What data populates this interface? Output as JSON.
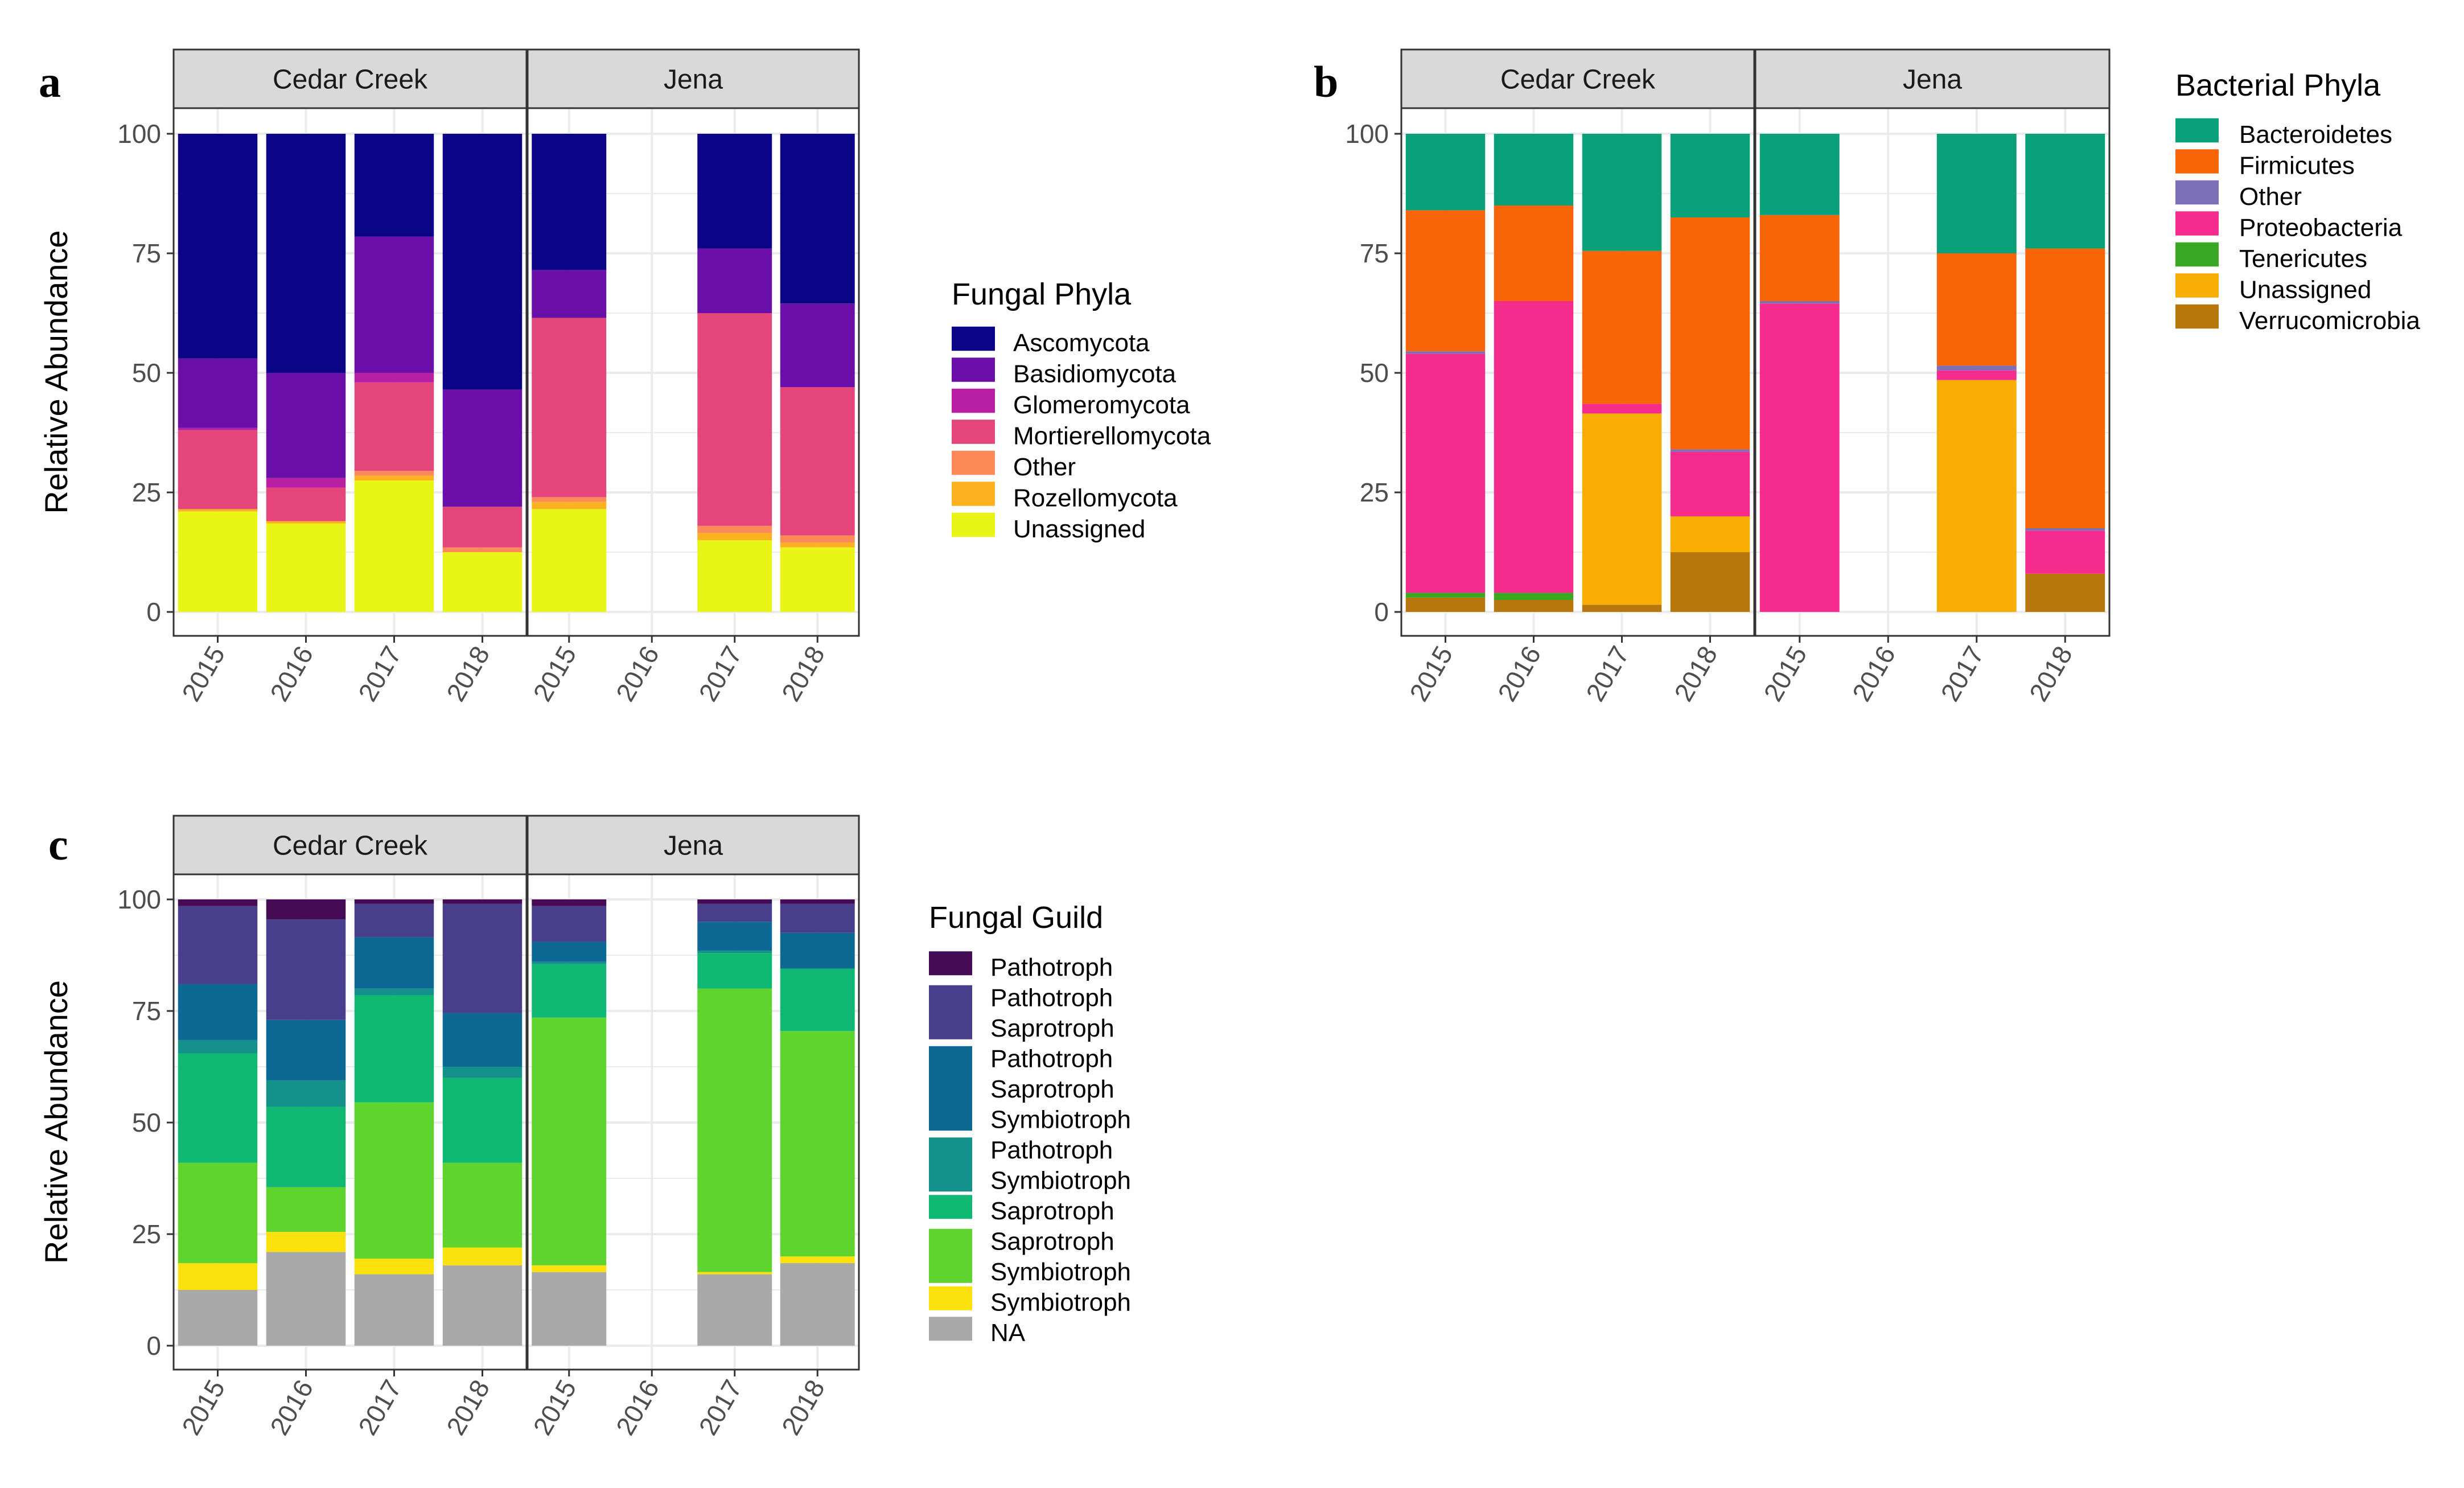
{
  "chart_data": [
    {
      "panel": "a",
      "type": "bar",
      "stacked": true,
      "ylabel": "Relative Abundance",
      "ylim": [
        0,
        100
      ],
      "yticks": [
        "0",
        "25",
        "50",
        "75",
        "100"
      ],
      "facets": [
        "Cedar Creek",
        "Jena"
      ],
      "categories": [
        "2015",
        "2016",
        "2017",
        "2018"
      ],
      "legend": {
        "title": "Fungal Phyla",
        "position": "right",
        "items": [
          "Ascomycota",
          "Basidiomycota",
          "Glomeromycota",
          "Mortierellomycota",
          "Other",
          "Rozellomycota",
          "Unassigned"
        ]
      },
      "series": [
        {
          "name": "Unassigned",
          "color": "#e8f516",
          "values": {
            "Cedar Creek": [
              21,
              18.5,
              27.5,
              12.5
            ],
            "Jena": [
              21.5,
              0,
              15,
              13.5
            ]
          }
        },
        {
          "name": "Rozellomycota",
          "color": "#fdb221",
          "values": {
            "Cedar Creek": [
              0.5,
              0.5,
              1,
              0
            ],
            "Jena": [
              1.5,
              0,
              1.5,
              1
            ]
          }
        },
        {
          "name": "Other",
          "color": "#fc8b59",
          "values": {
            "Cedar Creek": [
              0,
              0,
              1,
              1
            ],
            "Jena": [
              1,
              0,
              1.5,
              1.5
            ]
          }
        },
        {
          "name": "Mortierellomycota",
          "color": "#e4457a",
          "values": {
            "Cedar Creek": [
              16.5,
              7,
              18.5,
              8.5
            ],
            "Jena": [
              37.5,
              0,
              44.5,
              31
            ]
          }
        },
        {
          "name": "Glomeromycota",
          "color": "#b81ea1",
          "values": {
            "Cedar Creek": [
              0.5,
              2,
              2,
              0
            ],
            "Jena": [
              0,
              0,
              0,
              0
            ]
          }
        },
        {
          "name": "Basidiomycota",
          "color": "#6a0fa8",
          "values": {
            "Cedar Creek": [
              14.5,
              22,
              28.5,
              24.5
            ],
            "Jena": [
              10,
              0,
              13.5,
              17.5
            ]
          }
        },
        {
          "name": "Ascomycota",
          "color": "#0b0486",
          "values": {
            "Cedar Creek": [
              47,
              50,
              21.5,
              53.5
            ],
            "Jena": [
              28.5,
              0,
              24,
              35.5
            ]
          }
        }
      ]
    },
    {
      "panel": "b",
      "type": "bar",
      "stacked": true,
      "ylabel": "",
      "ylim": [
        0,
        100
      ],
      "yticks": [
        "0",
        "25",
        "50",
        "75",
        "100"
      ],
      "facets": [
        "Cedar Creek",
        "Jena"
      ],
      "categories": [
        "2015",
        "2016",
        "2017",
        "2018"
      ],
      "legend": {
        "title": "Bacterial Phyla",
        "position": "top-right",
        "items": [
          "Bacteroidetes",
          "Firmicutes",
          "Other",
          "Proteobacteria",
          "Tenericutes",
          "Unassigned",
          "Verrucomicrobia"
        ]
      },
      "series": [
        {
          "name": "Verrucomicrobia",
          "color": "#b8770d",
          "values": {
            "Cedar Creek": [
              3,
              2.5,
              1.5,
              12.5
            ],
            "Jena": [
              0,
              0,
              0,
              8
            ]
          }
        },
        {
          "name": "Unassigned",
          "color": "#f8ad05",
          "values": {
            "Cedar Creek": [
              0,
              0,
              40,
              7.5
            ],
            "Jena": [
              0,
              0,
              48.5,
              0
            ]
          }
        },
        {
          "name": "Tenericutes",
          "color": "#3ba824",
          "values": {
            "Cedar Creek": [
              1,
              1.5,
              0,
              0
            ],
            "Jena": [
              0,
              0,
              0,
              0
            ]
          }
        },
        {
          "name": "Proteobacteria",
          "color": "#f52b8e",
          "values": {
            "Cedar Creek": [
              50,
              61,
              2,
              13.5
            ],
            "Jena": [
              64.5,
              0,
              2,
              9
            ]
          }
        },
        {
          "name": "Other",
          "color": "#7c70b6",
          "values": {
            "Cedar Creek": [
              0.5,
              0,
              0,
              0.5
            ],
            "Jena": [
              0.5,
              0,
              1,
              0.5
            ]
          }
        },
        {
          "name": "Firmicutes",
          "color": "#f76508",
          "values": {
            "Cedar Creek": [
              29.5,
              20,
              32,
              48.5
            ],
            "Jena": [
              18,
              0,
              23.5,
              58.5
            ]
          }
        },
        {
          "name": "Bacteroidetes",
          "color": "#0aa07a",
          "values": {
            "Cedar Creek": [
              16,
              15,
              24.5,
              17.5
            ],
            "Jena": [
              17,
              0,
              25,
              24
            ]
          }
        }
      ]
    },
    {
      "panel": "c",
      "type": "bar",
      "stacked": true,
      "ylabel": "Relative Abundance",
      "ylim": [
        0,
        100
      ],
      "yticks": [
        "0",
        "25",
        "50",
        "75",
        "100"
      ],
      "facets": [
        "Cedar Creek",
        "Jena"
      ],
      "categories": [
        "2015",
        "2016",
        "2017",
        "2018"
      ],
      "legend": {
        "title": "Fungal Guild",
        "position": "right",
        "items": [
          [
            "Pathotroph"
          ],
          [
            "Pathotroph",
            "Saprotroph"
          ],
          [
            "Pathotroph",
            "Saprotroph",
            "Symbiotroph"
          ],
          [
            "Pathotroph",
            "Symbiotroph"
          ],
          [
            "Saprotroph"
          ],
          [
            "Saprotroph",
            "Symbiotroph"
          ],
          [
            "Symbiotroph"
          ],
          [
            "NA"
          ]
        ]
      },
      "series": [
        {
          "name": "NA",
          "color": "#a9a9a9",
          "values": {
            "Cedar Creek": [
              12.5,
              21,
              16,
              18
            ],
            "Jena": [
              16.5,
              0,
              16,
              18.5
            ]
          }
        },
        {
          "name": "Symbiotroph",
          "color": "#fae10e",
          "values": {
            "Cedar Creek": [
              6,
              4.5,
              3.5,
              4
            ],
            "Jena": [
              1.5,
              0,
              0.5,
              1.5
            ]
          }
        },
        {
          "name": "Saprotroph Symbiotroph",
          "color": "#5fd42f",
          "values": {
            "Cedar Creek": [
              22.5,
              10,
              35,
              19
            ],
            "Jena": [
              55.5,
              0,
              63.5,
              50.5
            ]
          }
        },
        {
          "name": "Saprotroph",
          "color": "#11b874",
          "values": {
            "Cedar Creek": [
              24.5,
              18,
              24,
              19
            ],
            "Jena": [
              12,
              0,
              8,
              14
            ]
          }
        },
        {
          "name": "Pathotroph Symbiotroph",
          "color": "#14918b",
          "values": {
            "Cedar Creek": [
              3,
              6,
              1.5,
              2.5
            ],
            "Jena": [
              0.5,
              0,
              0.5,
              0
            ]
          }
        },
        {
          "name": "Pathotroph Saprotroph Symbiotroph",
          "color": "#0d6894",
          "values": {
            "Cedar Creek": [
              12.5,
              13.5,
              11.5,
              12
            ],
            "Jena": [
              4.5,
              0,
              6.5,
              8
            ]
          }
        },
        {
          "name": "Pathotroph Saprotroph",
          "color": "#473f8b",
          "values": {
            "Cedar Creek": [
              17.5,
              22.5,
              7.5,
              24.5
            ],
            "Jena": [
              8,
              0,
              4,
              6.5
            ]
          }
        },
        {
          "name": "Pathotroph",
          "color": "#450b55",
          "values": {
            "Cedar Creek": [
              1.5,
              4.5,
              1,
              1
            ],
            "Jena": [
              1.5,
              0,
              1,
              1
            ]
          }
        }
      ]
    }
  ]
}
